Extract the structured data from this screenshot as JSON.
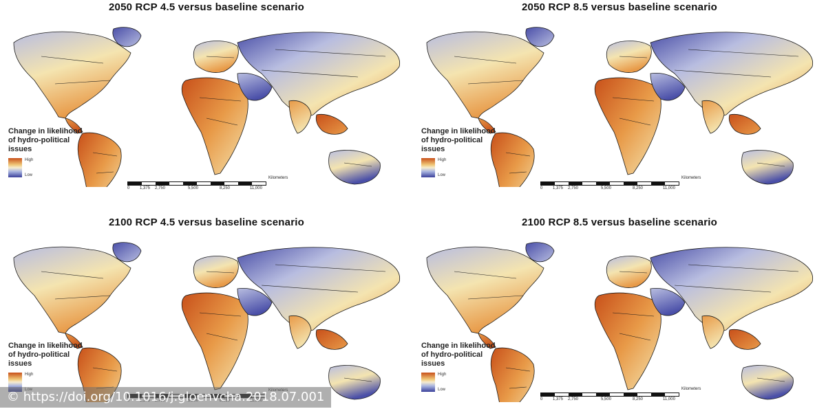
{
  "panels": [
    {
      "title": "2050 RCP 4.5 versus baseline scenario"
    },
    {
      "title": "2050 RCP 8.5 versus baseline scenario"
    },
    {
      "title": "2100 RCP 4.5 versus baseline scenario"
    },
    {
      "title": "2100 RCP 8.5 versus baseline scenario"
    }
  ],
  "legend": {
    "title_lines": [
      "Change in likelihood",
      "of hydro-political",
      "issues"
    ],
    "high_label": "High",
    "low_label": "Low",
    "high_color": "#c8501a",
    "low_color": "#3a3f9a"
  },
  "scalebar": {
    "ticks": [
      "0",
      "1,375",
      "2,750",
      "5,500",
      "8,250",
      "11,000"
    ],
    "unit": "Kilometers"
  },
  "doi": "© https://doi.org/10.1016/j.gloenvcha.2018.07.001",
  "colors": {
    "high": "#c8501a",
    "mid_high": "#e89a48",
    "neutral": "#f4e4b0",
    "mid_low": "#b8bde0",
    "low": "#4a4fa8",
    "border": "#1a1a1a"
  }
}
